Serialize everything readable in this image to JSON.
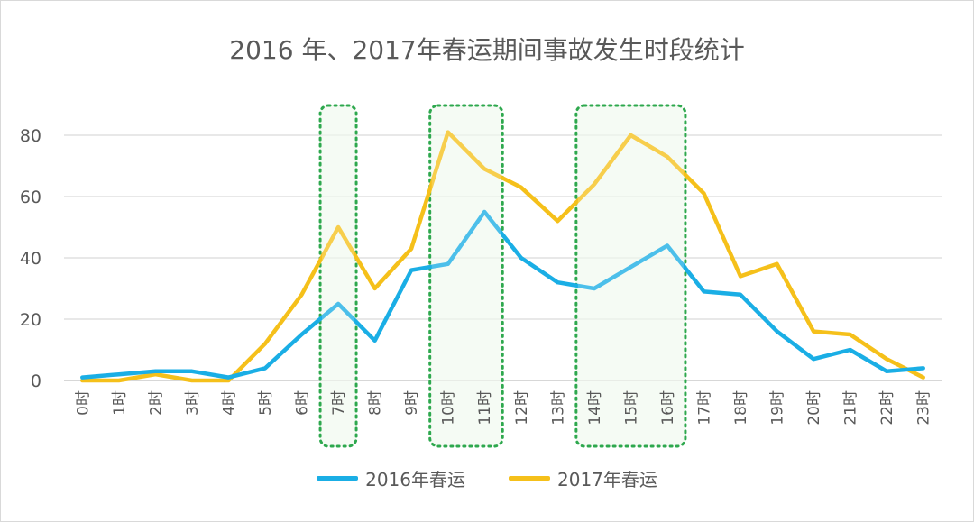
{
  "chart_data": {
    "type": "line",
    "title": "2016 年、2017年春运期间事故发生时段统计",
    "categories": [
      "0时",
      "1时",
      "2时",
      "3时",
      "4时",
      "5时",
      "6时",
      "7时",
      "8时",
      "9时",
      "10时",
      "11时",
      "12时",
      "13时",
      "14时",
      "15时",
      "16时",
      "17时",
      "18时",
      "19时",
      "20时",
      "21时",
      "22时",
      "23时"
    ],
    "series": [
      {
        "name": "2016年春运",
        "color": "#1aaee5",
        "values": [
          1,
          2,
          3,
          3,
          1,
          4,
          15,
          25,
          13,
          36,
          38,
          55,
          40,
          32,
          30,
          37,
          44,
          29,
          28,
          16,
          7,
          10,
          3,
          4
        ]
      },
      {
        "name": "2017年春运",
        "color": "#f5c01a",
        "values": [
          0,
          0,
          2,
          0,
          0,
          12,
          28,
          50,
          30,
          43,
          81,
          69,
          63,
          52,
          64,
          80,
          73,
          61,
          34,
          38,
          16,
          15,
          7,
          1
        ]
      }
    ],
    "y_ticks": [
      "0",
      "20",
      "40",
      "60",
      "80"
    ],
    "ylim": [
      0,
      80
    ],
    "grid": true,
    "legend_position": "bottom",
    "highlight_ranges": [
      [
        7,
        7
      ],
      [
        10,
        11
      ],
      [
        14,
        16
      ]
    ],
    "highlight_color": "#2ea84e"
  }
}
